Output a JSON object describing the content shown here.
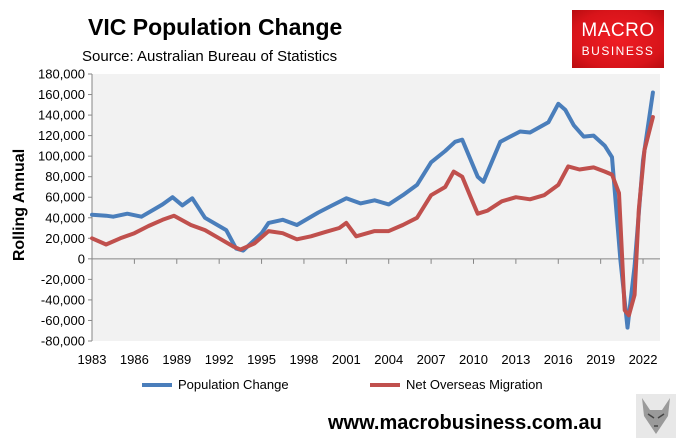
{
  "title": "VIC Population Change",
  "source": "Source: Australian Bureau of Statistics",
  "logo": {
    "line1": "MACRO",
    "line2": "BUSINESS",
    "color": "#e01b22"
  },
  "website": "www.macrobusiness.com.au",
  "chart_data": {
    "type": "line",
    "title": "VIC Population Change",
    "ylabel": "Rolling Annual",
    "xlabel": "",
    "ylim": [
      -80000,
      180000
    ],
    "xlim": [
      1983,
      2023.2
    ],
    "yticks": [
      "180,000",
      "160,000",
      "140,000",
      "120,000",
      "100,000",
      "80,000",
      "60,000",
      "40,000",
      "20,000",
      "0",
      "-20,000",
      "-40,000",
      "-60,000",
      "-80,000"
    ],
    "ytick_values": [
      180000,
      160000,
      140000,
      120000,
      100000,
      80000,
      60000,
      40000,
      20000,
      0,
      -20000,
      -40000,
      -60000,
      -80000
    ],
    "xticks": [
      "1983",
      "1986",
      "1989",
      "1992",
      "1995",
      "1998",
      "2001",
      "2004",
      "2007",
      "2010",
      "2013",
      "2016",
      "2019",
      "2022"
    ],
    "xtick_values": [
      1983,
      1986,
      1989,
      1992,
      1995,
      1998,
      2001,
      2004,
      2007,
      2010,
      2013,
      2016,
      2019,
      2022
    ],
    "grid": false,
    "legend": "bottom",
    "series": [
      {
        "name": "Population Change",
        "color": "#4a7ebb",
        "x": [
          1983,
          1984,
          1984.5,
          1985.5,
          1986.5,
          1987.5,
          1988,
          1988.7,
          1989.4,
          1990.1,
          1991,
          1992.5,
          1993.2,
          1993.7,
          1995,
          1995.5,
          1996.5,
          1997.5,
          1999,
          2000,
          2001,
          2002,
          2003,
          2004,
          2005,
          2006,
          2007,
          2008,
          2008.7,
          2009.2,
          2010.3,
          2010.7,
          2011.9,
          2013.3,
          2014,
          2015.3,
          2016,
          2016.5,
          2017.1,
          2017.8,
          2018.5,
          2019.3,
          2019.8,
          2020.4,
          2020.9,
          2021.4,
          2022,
          2022.7
        ],
        "y": [
          43000,
          42000,
          41000,
          44000,
          41000,
          49000,
          53000,
          60000,
          52000,
          59000,
          40000,
          28000,
          10000,
          8000,
          25000,
          35000,
          38000,
          33000,
          45000,
          52000,
          59000,
          54000,
          57000,
          53000,
          62000,
          72000,
          94000,
          105000,
          114000,
          116000,
          80000,
          75000,
          114000,
          124000,
          123000,
          133000,
          151000,
          145000,
          130000,
          119000,
          120000,
          110000,
          99000,
          -1000,
          -67000,
          -7000,
          96000,
          162000
        ]
      },
      {
        "name": "Net Overseas Migration",
        "color": "#c0504d",
        "x": [
          1983,
          1984,
          1985,
          1986,
          1987,
          1988,
          1988.8,
          1990,
          1991,
          1992,
          1993,
          1993.5,
          1994.5,
          1995.5,
          1996.5,
          1997.5,
          1998.5,
          1999.5,
          2000.5,
          2001,
          2001.7,
          2003,
          2004,
          2005,
          2006,
          2007,
          2008,
          2008.6,
          2009.2,
          2009.8,
          2010.3,
          2011,
          2012,
          2013,
          2014,
          2015,
          2016,
          2016.7,
          2017.5,
          2018.5,
          2019.3,
          2019.8,
          2020.3,
          2020.7,
          2021,
          2021.4,
          2021.7,
          2022.1,
          2022.7
        ],
        "y": [
          20000,
          14000,
          20000,
          25000,
          32000,
          38000,
          42000,
          33000,
          28000,
          20000,
          12000,
          9000,
          15000,
          27000,
          25000,
          19000,
          22000,
          26000,
          30000,
          35000,
          22000,
          27000,
          27000,
          33000,
          40000,
          62000,
          70000,
          85000,
          80000,
          60000,
          44000,
          47000,
          56000,
          60000,
          58000,
          62000,
          72000,
          90000,
          87000,
          89000,
          85000,
          82000,
          64000,
          -50000,
          -55000,
          -35000,
          48000,
          106000,
          138000
        ]
      }
    ]
  }
}
